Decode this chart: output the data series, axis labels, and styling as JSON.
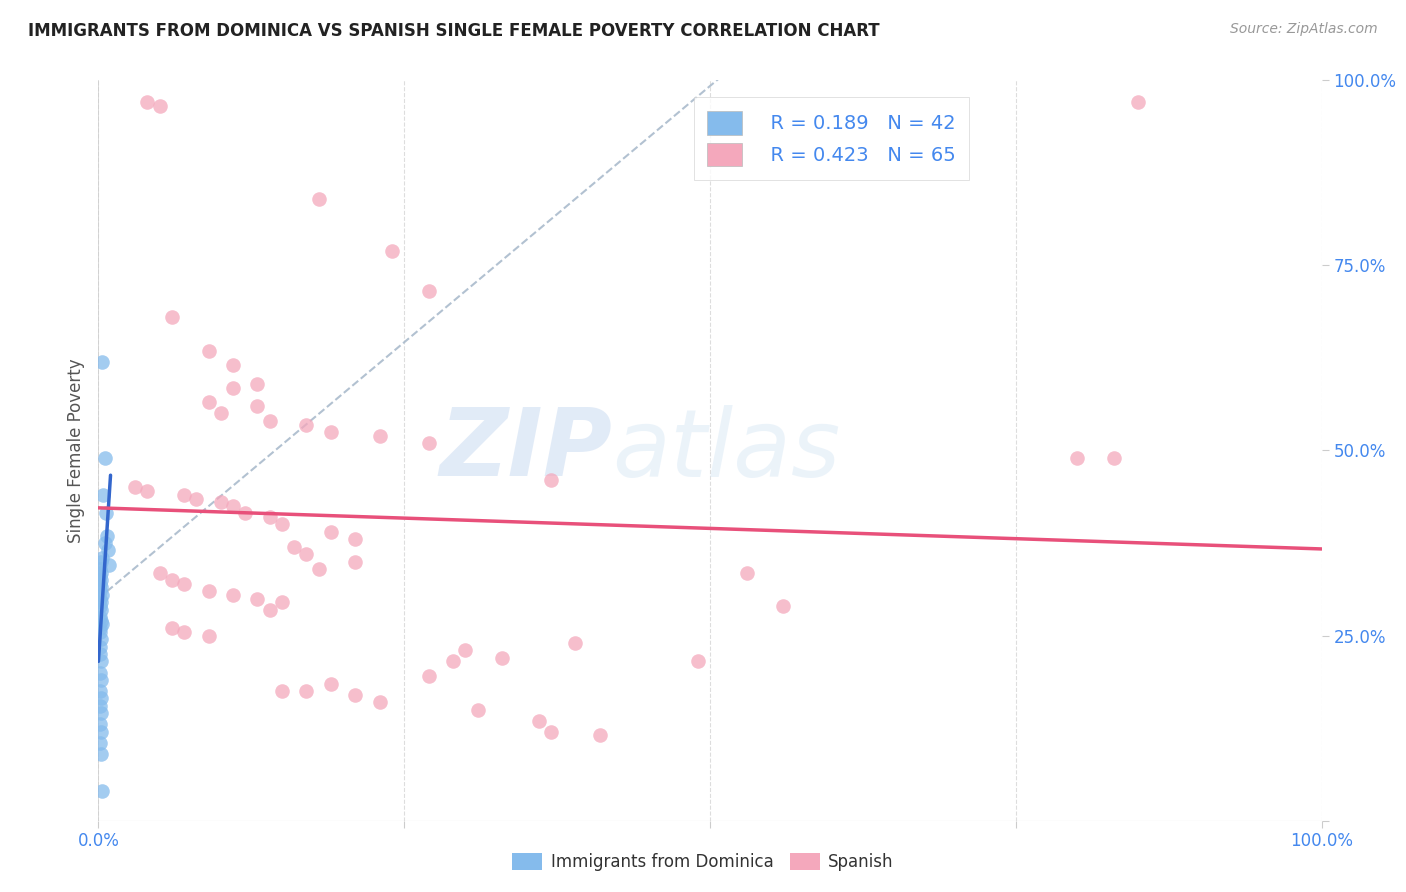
{
  "title": "IMMIGRANTS FROM DOMINICA VS SPANISH SINGLE FEMALE POVERTY CORRELATION CHART",
  "source": "Source: ZipAtlas.com",
  "ylabel": "Single Female Poverty",
  "xlim": [
    0,
    1.0
  ],
  "ylim": [
    0,
    1.0
  ],
  "xtick_positions": [
    0.0,
    0.25,
    0.5,
    0.75,
    1.0
  ],
  "xticklabels": [
    "0.0%",
    "",
    "",
    "",
    "100.0%"
  ],
  "ytick_positions": [
    0.0,
    0.25,
    0.5,
    0.75,
    1.0
  ],
  "yticklabels_right": [
    "",
    "25.0%",
    "50.0%",
    "75.0%",
    "100.0%"
  ],
  "watermark": "ZIPatlas",
  "legend_r_blue": "0.189",
  "legend_n_blue": "42",
  "legend_r_pink": "0.423",
  "legend_n_pink": "65",
  "blue_color": "#85BBEC",
  "pink_color": "#F4A8BC",
  "blue_line_color": "#3366CC",
  "pink_line_color": "#E8507A",
  "dashed_line_color": "#AABBCC",
  "tick_color": "#4488EE",
  "background_color": "#FFFFFF",
  "grid_color": "#DDDDDD",
  "blue_scatter": [
    [
      0.003,
      0.62
    ],
    [
      0.005,
      0.49
    ],
    [
      0.004,
      0.44
    ],
    [
      0.006,
      0.415
    ],
    [
      0.007,
      0.385
    ],
    [
      0.005,
      0.375
    ],
    [
      0.008,
      0.365
    ],
    [
      0.003,
      0.355
    ],
    [
      0.002,
      0.35
    ],
    [
      0.009,
      0.345
    ],
    [
      0.001,
      0.34
    ],
    [
      0.002,
      0.335
    ],
    [
      0.001,
      0.33
    ],
    [
      0.002,
      0.325
    ],
    [
      0.001,
      0.32
    ],
    [
      0.002,
      0.315
    ],
    [
      0.001,
      0.31
    ],
    [
      0.003,
      0.305
    ],
    [
      0.001,
      0.3
    ],
    [
      0.002,
      0.295
    ],
    [
      0.001,
      0.29
    ],
    [
      0.002,
      0.285
    ],
    [
      0.001,
      0.275
    ],
    [
      0.002,
      0.27
    ],
    [
      0.003,
      0.265
    ],
    [
      0.001,
      0.26
    ],
    [
      0.001,
      0.255
    ],
    [
      0.002,
      0.245
    ],
    [
      0.001,
      0.235
    ],
    [
      0.001,
      0.225
    ],
    [
      0.002,
      0.215
    ],
    [
      0.001,
      0.2
    ],
    [
      0.002,
      0.19
    ],
    [
      0.001,
      0.175
    ],
    [
      0.002,
      0.165
    ],
    [
      0.001,
      0.155
    ],
    [
      0.002,
      0.145
    ],
    [
      0.001,
      0.13
    ],
    [
      0.002,
      0.12
    ],
    [
      0.001,
      0.105
    ],
    [
      0.002,
      0.09
    ],
    [
      0.003,
      0.04
    ]
  ],
  "pink_scatter": [
    [
      0.04,
      0.97
    ],
    [
      0.05,
      0.965
    ],
    [
      0.85,
      0.97
    ],
    [
      0.18,
      0.84
    ],
    [
      0.24,
      0.77
    ],
    [
      0.27,
      0.715
    ],
    [
      0.06,
      0.68
    ],
    [
      0.09,
      0.635
    ],
    [
      0.11,
      0.615
    ],
    [
      0.13,
      0.59
    ],
    [
      0.11,
      0.585
    ],
    [
      0.09,
      0.565
    ],
    [
      0.13,
      0.56
    ],
    [
      0.1,
      0.55
    ],
    [
      0.14,
      0.54
    ],
    [
      0.17,
      0.535
    ],
    [
      0.19,
      0.525
    ],
    [
      0.23,
      0.52
    ],
    [
      0.27,
      0.51
    ],
    [
      0.37,
      0.46
    ],
    [
      0.03,
      0.45
    ],
    [
      0.04,
      0.445
    ],
    [
      0.07,
      0.44
    ],
    [
      0.08,
      0.435
    ],
    [
      0.1,
      0.43
    ],
    [
      0.11,
      0.425
    ],
    [
      0.12,
      0.415
    ],
    [
      0.14,
      0.41
    ],
    [
      0.15,
      0.4
    ],
    [
      0.19,
      0.39
    ],
    [
      0.21,
      0.38
    ],
    [
      0.16,
      0.37
    ],
    [
      0.17,
      0.36
    ],
    [
      0.21,
      0.35
    ],
    [
      0.18,
      0.34
    ],
    [
      0.05,
      0.335
    ],
    [
      0.06,
      0.325
    ],
    [
      0.07,
      0.32
    ],
    [
      0.09,
      0.31
    ],
    [
      0.11,
      0.305
    ],
    [
      0.13,
      0.3
    ],
    [
      0.15,
      0.295
    ],
    [
      0.14,
      0.285
    ],
    [
      0.8,
      0.49
    ],
    [
      0.83,
      0.49
    ],
    [
      0.53,
      0.335
    ],
    [
      0.56,
      0.29
    ],
    [
      0.39,
      0.24
    ],
    [
      0.3,
      0.23
    ],
    [
      0.33,
      0.22
    ],
    [
      0.29,
      0.215
    ],
    [
      0.27,
      0.195
    ],
    [
      0.19,
      0.185
    ],
    [
      0.21,
      0.17
    ],
    [
      0.23,
      0.16
    ],
    [
      0.31,
      0.15
    ],
    [
      0.36,
      0.135
    ],
    [
      0.37,
      0.12
    ],
    [
      0.41,
      0.115
    ],
    [
      0.49,
      0.215
    ],
    [
      0.15,
      0.175
    ],
    [
      0.17,
      0.175
    ],
    [
      0.06,
      0.26
    ],
    [
      0.07,
      0.255
    ],
    [
      0.09,
      0.25
    ]
  ]
}
